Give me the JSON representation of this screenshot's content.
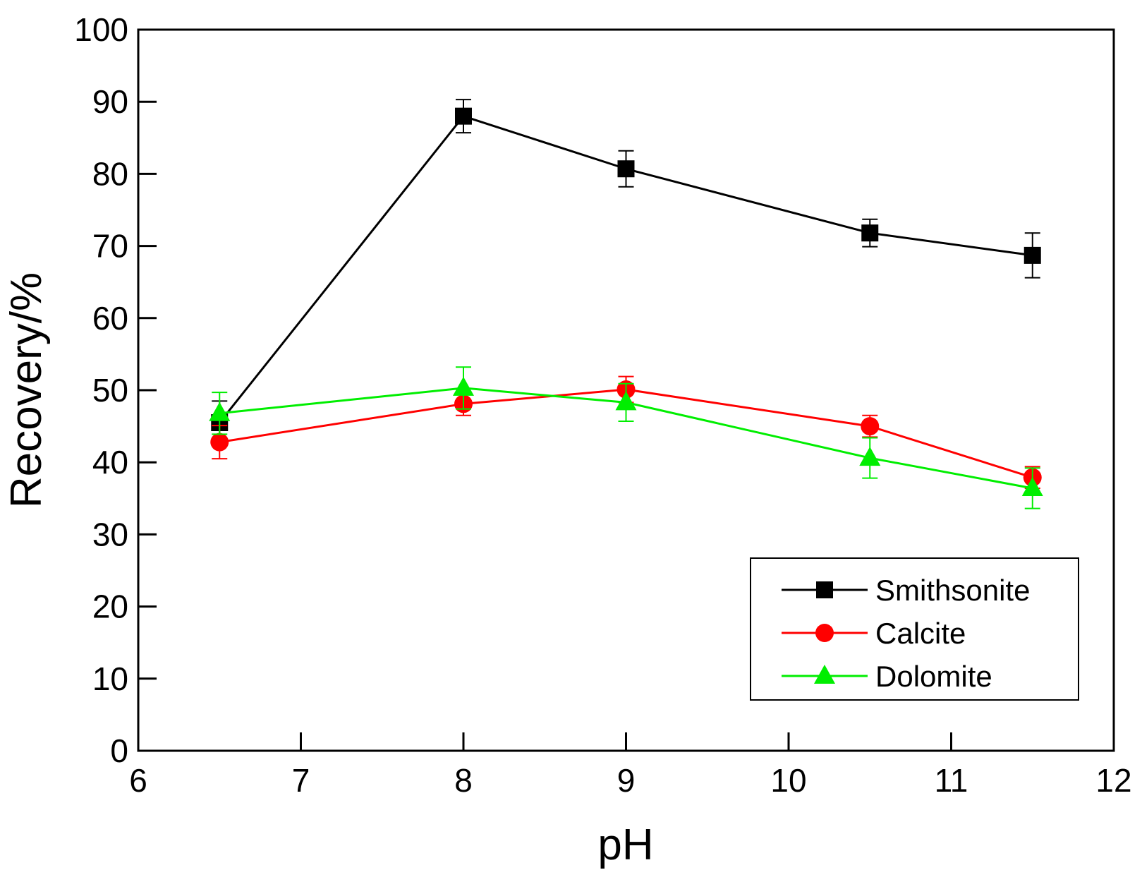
{
  "chart_data": {
    "type": "line",
    "title": "",
    "xlabel": "pH",
    "ylabel": "Recovery/%",
    "xlim": [
      6,
      12
    ],
    "ylim": [
      0,
      100
    ],
    "xticks": [
      6,
      7,
      8,
      9,
      10,
      11,
      12
    ],
    "yticks": [
      0,
      10,
      20,
      30,
      40,
      50,
      60,
      70,
      80,
      90,
      100
    ],
    "grid": false,
    "legend_position": "bottom-right",
    "x": [
      6.5,
      8,
      9,
      10.5,
      11.5
    ],
    "series": [
      {
        "name": "Smithsonite",
        "color": "#000000",
        "marker": "square",
        "values": [
          45.5,
          88.0,
          80.7,
          71.8,
          68.7
        ],
        "errors": [
          3.0,
          2.3,
          2.5,
          1.9,
          3.1
        ]
      },
      {
        "name": "Calcite",
        "color": "#ff0000",
        "marker": "circle",
        "values": [
          42.8,
          48.1,
          50.1,
          45.0,
          37.9
        ],
        "errors": [
          2.3,
          1.6,
          1.8,
          1.5,
          1.5
        ]
      },
      {
        "name": "Dolomite",
        "color": "#00ee00",
        "marker": "triangle",
        "values": [
          46.8,
          50.3,
          48.3,
          40.6,
          36.4
        ],
        "errors": [
          2.9,
          2.9,
          2.6,
          2.8,
          2.8
        ]
      }
    ]
  }
}
